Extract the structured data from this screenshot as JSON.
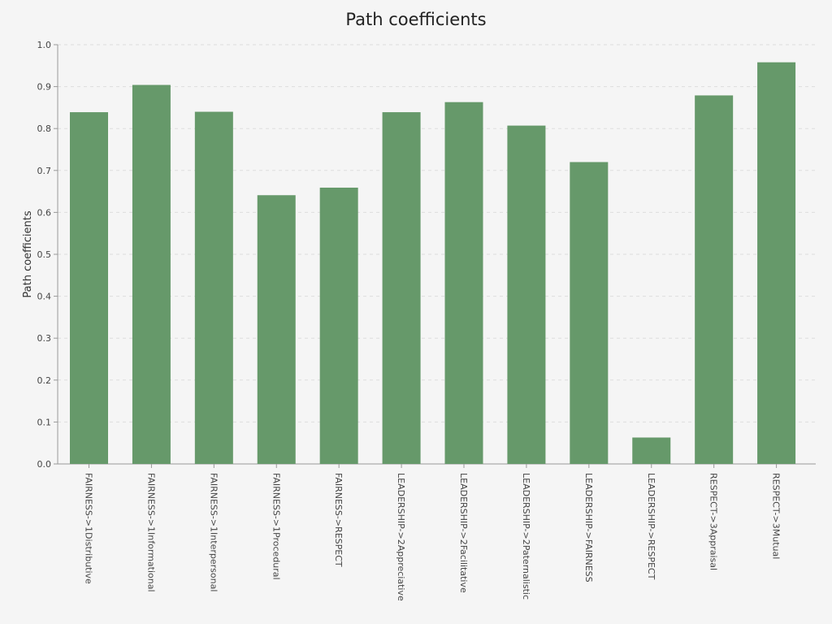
{
  "chart_data": {
    "type": "bar",
    "title": "Path coefficients",
    "xlabel": "",
    "ylabel": "Path coefficients",
    "ylim": [
      0,
      1.0
    ],
    "yticks": [
      "0.0",
      "0.1",
      "0.2",
      "0.3",
      "0.4",
      "0.5",
      "0.6",
      "0.7",
      "0.8",
      "0.9",
      "1.0"
    ],
    "grid": true,
    "bar_color": "#66996a",
    "categories": [
      "FAIRNESS->1Distributive",
      "FAIRNESS->1Informational",
      "FAIRNESS->1Interpersonal",
      "FAIRNESS->1Procedural",
      "FAIRNESS->RESPECT",
      "LEADERSHIP->2Appreciative",
      "LEADERSHIP->2Facilitative",
      "LEADERSHIP->2Paternalistic",
      "LEADERSHIP->FAIRNESS",
      "LEADERSHIP->RESPECT",
      "RESPECT->3Appraisal",
      "RESPECT->3Mutual"
    ],
    "values": [
      0.839,
      0.904,
      0.84,
      0.641,
      0.659,
      0.839,
      0.863,
      0.807,
      0.72,
      0.063,
      0.879,
      0.958
    ]
  }
}
